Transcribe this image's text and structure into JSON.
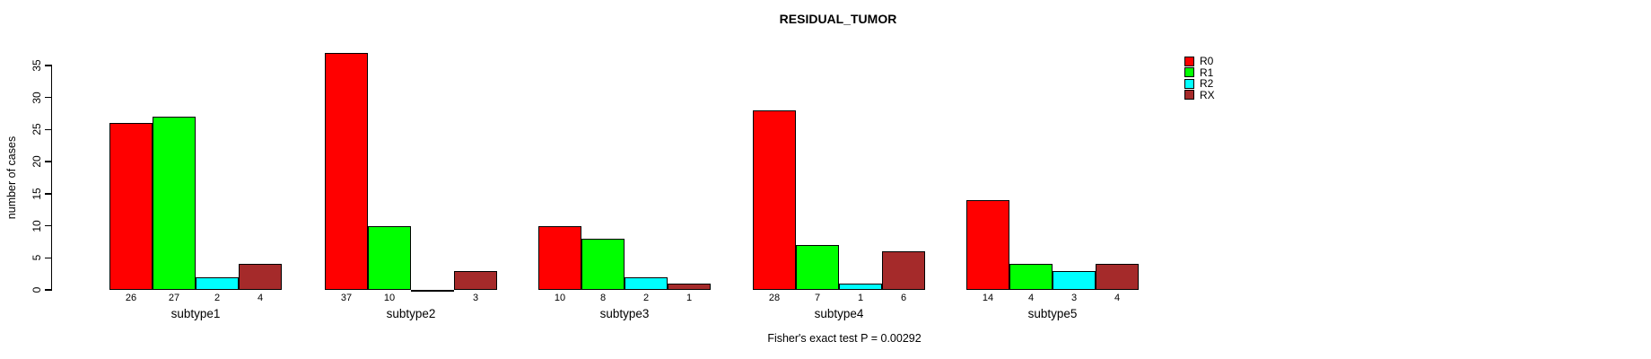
{
  "chart_data": {
    "type": "bar",
    "layout": "grouped",
    "title": "RESIDUAL_TUMOR",
    "ylabel": "number of cases",
    "xlabel": "",
    "categories": [
      "subtype1",
      "subtype2",
      "subtype3",
      "subtype4",
      "subtype5"
    ],
    "series": [
      {
        "name": "R0",
        "color": "#FF0000",
        "values": [
          26,
          37,
          10,
          28,
          14
        ]
      },
      {
        "name": "R1",
        "color": "#00FF00",
        "values": [
          27,
          10,
          8,
          7,
          4
        ]
      },
      {
        "name": "R2",
        "color": "#00FFFF",
        "values": [
          2,
          0,
          2,
          1,
          3
        ]
      },
      {
        "name": "RX",
        "color": "#A52A2A",
        "values": [
          4,
          3,
          1,
          6,
          4
        ]
      }
    ],
    "yticks": [
      0,
      5,
      10,
      15,
      20,
      25,
      30,
      35
    ],
    "ylim": [
      0,
      37
    ],
    "grid": false,
    "bar_value_labels_shown": true,
    "zero_value_labels_hidden": true,
    "legend_position": "top-right",
    "legend_entries": [
      "R0",
      "R1",
      "R2",
      "RX"
    ],
    "annotation": "Fisher's exact test P = 0.00292",
    "axis_color": "#000000",
    "background_color": "#FFFFFF"
  }
}
